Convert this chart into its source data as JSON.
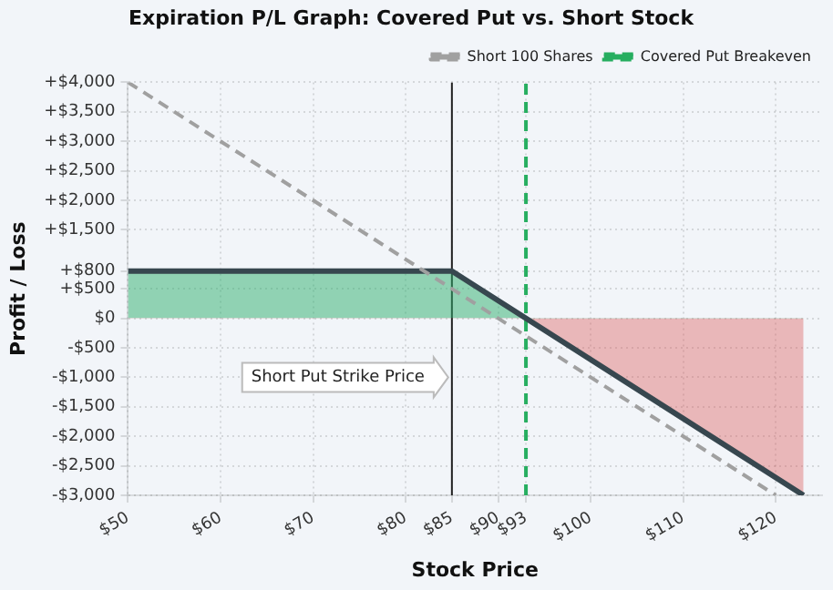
{
  "chart_data": {
    "type": "line",
    "title": "Expiration P/L Graph: Covered Put vs. Short Stock",
    "xlabel": "Stock Price",
    "ylabel": "Profit / Loss",
    "series": [
      {
        "type": "area",
        "color": "#37474f",
        "x": [
          50,
          85,
          123
        ],
        "values": [
          800,
          800,
          -3000
        ]
      },
      {
        "type": "line",
        "name": "Short 100 Shares",
        "color": "#a0a0a0",
        "line_style": "dashed",
        "x": [
          50,
          120
        ],
        "values": [
          4000,
          -3000
        ]
      }
    ],
    "xlim": [
      50,
      125
    ],
    "ylim": [
      -3000,
      4000
    ],
    "xticks": [
      {
        "value": 50,
        "label": "$50"
      },
      {
        "value": 60,
        "label": "$60"
      },
      {
        "value": 70,
        "label": "$70"
      },
      {
        "value": 80,
        "label": "$80"
      },
      {
        "value": 85,
        "label": "$85"
      },
      {
        "value": 90,
        "label": "$90"
      },
      {
        "value": 93,
        "label": "$93"
      },
      {
        "value": 100,
        "label": "$100"
      },
      {
        "value": 110,
        "label": "$110"
      },
      {
        "value": 120,
        "label": "$120"
      }
    ],
    "yticks": [
      {
        "value": 4000,
        "label": "+$4,000"
      },
      {
        "value": 3500,
        "label": "+$3,500"
      },
      {
        "value": 3000,
        "label": "+$3,000"
      },
      {
        "value": 2500,
        "label": "+$2,500"
      },
      {
        "value": 2000,
        "label": "+$2,000"
      },
      {
        "value": 1500,
        "label": "+$1,500"
      },
      {
        "value": 800,
        "label": "+$800"
      },
      {
        "value": 500,
        "label": "+$500"
      },
      {
        "value": 0,
        "label": "$0"
      },
      {
        "value": -500,
        "label": "-$500"
      },
      {
        "value": -1000,
        "label": "-$1,000"
      },
      {
        "value": -1500,
        "label": "-$1,500"
      },
      {
        "value": -2000,
        "label": "-$2,000"
      },
      {
        "value": -2500,
        "label": "-$2,500"
      },
      {
        "value": -3000,
        "label": "-$3,000"
      }
    ],
    "ref_lines": [
      {
        "axis": "x",
        "value": 93,
        "label": "Covered Put Breakeven",
        "color": "#27ae60",
        "line_style": "dashed"
      },
      {
        "axis": "x",
        "value": 85,
        "label": null,
        "color": "#222222",
        "line_style": "solid"
      }
    ],
    "annotations": [
      {
        "text": "Short Put Strike Price",
        "x": 85,
        "y": -1000
      }
    ],
    "grid": true,
    "legend": "top right",
    "marker": "none"
  }
}
